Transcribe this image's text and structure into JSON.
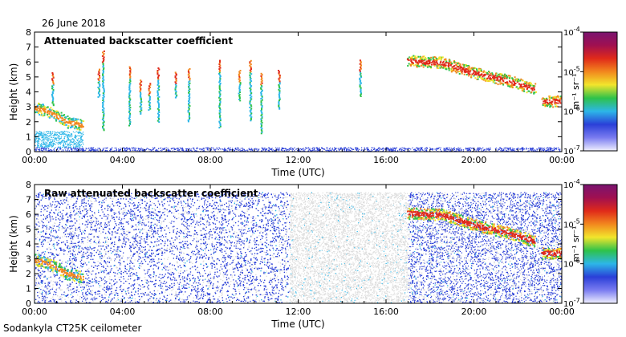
{
  "header": {
    "date": "26 June 2018"
  },
  "footer": {
    "instrument": "Sodankyla CT25K ceilometer"
  },
  "colormap": [
    "#dcdcdc",
    "#2a3fd8",
    "#2db6e8",
    "#2ec24a",
    "#f2e52c",
    "#f2871e",
    "#e02a1a",
    "#7a1470"
  ],
  "chart_data": [
    {
      "type": "heatmap",
      "title": "Attenuated backscatter coefficient",
      "xlabel": "Time (UTC)",
      "ylabel": "Height (km)",
      "xlim": [
        0,
        24
      ],
      "ylim": [
        0,
        8
      ],
      "xticks": [
        "00:00",
        "04:00",
        "08:00",
        "12:00",
        "16:00",
        "20:00",
        "00:00"
      ],
      "yticks": [
        "0",
        "1",
        "2",
        "3",
        "4",
        "5",
        "6",
        "7",
        "8"
      ],
      "colorbar": {
        "label": "m⁻¹ sr⁻¹",
        "scale": "log",
        "range": [
          1e-07,
          0.0001
        ],
        "ticks": [
          "10-7",
          "10-6",
          "10-5",
          "10-4"
        ]
      },
      "features": [
        {
          "kind": "surface_layer",
          "t": [
            0,
            24
          ],
          "z": [
            0,
            0.3
          ],
          "level": 1
        },
        {
          "kind": "boundary_layer",
          "t": [
            0,
            2.2
          ],
          "z": [
            0.3,
            1.4
          ],
          "level": 2
        },
        {
          "kind": "cloud_layer",
          "points": [
            [
              0,
              3.0
            ],
            [
              0.8,
              2.6
            ],
            [
              1.5,
              2.0
            ],
            [
              2.2,
              1.8
            ]
          ],
          "level": 5
        },
        {
          "kind": "cloud_layer",
          "points": [
            [
              17.0,
              6.1
            ],
            [
              18.5,
              6.0
            ],
            [
              20.0,
              5.3
            ],
            [
              21.5,
              4.8
            ],
            [
              22.8,
              4.2
            ]
          ],
          "level": 6
        },
        {
          "kind": "cloud_layer",
          "points": [
            [
              23.1,
              3.4
            ],
            [
              24,
              3.4
            ]
          ],
          "level": 6
        },
        {
          "kind": "virga",
          "times": [
            0.8,
            2.9,
            3.1,
            4.3,
            4.8,
            5.2,
            5.6,
            6.4,
            7.0,
            8.4,
            9.3,
            9.8,
            10.3,
            11.1,
            14.8
          ]
        }
      ]
    },
    {
      "type": "heatmap",
      "title": "Raw attenuated backscatter coefficient",
      "xlabel": "Time (UTC)",
      "ylabel": "Height (km)",
      "xlim": [
        0,
        24
      ],
      "ylim": [
        0,
        8
      ],
      "xticks": [
        "00:00",
        "04:00",
        "08:00",
        "12:00",
        "16:00",
        "20:00",
        "00:00"
      ],
      "yticks": [
        "0",
        "1",
        "2",
        "3",
        "4",
        "5",
        "6",
        "7",
        "8"
      ],
      "colorbar": {
        "label": "m⁻¹ sr⁻¹",
        "scale": "log",
        "range": [
          1e-07,
          0.0001
        ],
        "ticks": [
          "10-7",
          "10-6",
          "10-5",
          "10-4"
        ]
      },
      "features": [
        {
          "kind": "noise_field",
          "t": [
            0,
            11.6
          ],
          "z": [
            0,
            7.5
          ],
          "level": 1
        },
        {
          "kind": "noise_field",
          "t": [
            11.6,
            17.0
          ],
          "z": [
            0,
            7.5
          ],
          "level": 0
        },
        {
          "kind": "noise_field",
          "t": [
            17.0,
            24
          ],
          "z": [
            0,
            7.5
          ],
          "level": 1
        },
        {
          "kind": "cloud_layer",
          "points": [
            [
              0,
              3.0
            ],
            [
              0.8,
              2.6
            ],
            [
              1.5,
              2.0
            ],
            [
              2.2,
              1.8
            ]
          ],
          "level": 5
        },
        {
          "kind": "cloud_layer",
          "points": [
            [
              17.0,
              6.1
            ],
            [
              18.5,
              6.0
            ],
            [
              20.0,
              5.3
            ],
            [
              21.5,
              4.8
            ],
            [
              22.8,
              4.2
            ]
          ],
          "level": 6
        },
        {
          "kind": "cloud_layer",
          "points": [
            [
              23.1,
              3.4
            ],
            [
              24,
              3.4
            ]
          ],
          "level": 6
        }
      ]
    }
  ]
}
